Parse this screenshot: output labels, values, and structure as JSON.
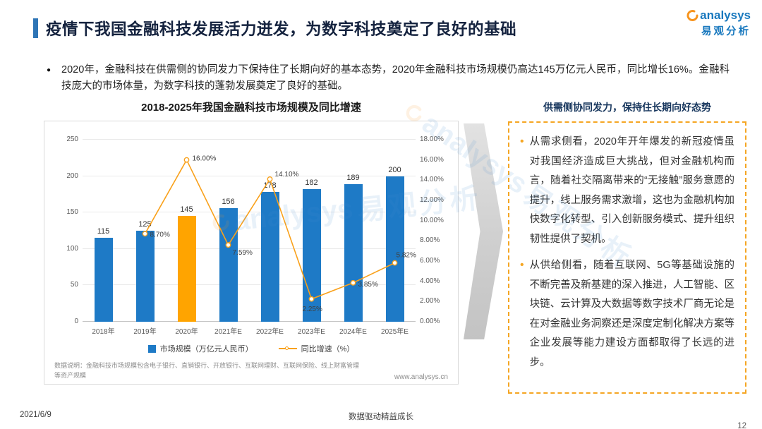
{
  "header": {
    "title": "疫情下我国金融科技发展活力迸发，为数字科技奠定了良好的基础",
    "logo": {
      "brand": "analysys",
      "brand_cn": "易观分析"
    }
  },
  "icons": {
    "intro_bullet": "●",
    "panel_bullet": "•"
  },
  "intro": {
    "text": "2020年，金融科技在供需侧的协同发力下保持住了长期向好的基本态势，2020年金融科技市场规模仍高达145万亿元人民币，同比增长16%。金融科技庞大的市场体量，为数字科技的蓬勃发展奠定了良好的基础。"
  },
  "chart_data": {
    "type": "bar+line",
    "title": "2018-2025年我国金融科技市场规模及同比增速",
    "categories": [
      "2018年",
      "2019年",
      "2020年",
      "2021年E",
      "2022年E",
      "2023年E",
      "2024年E",
      "2025年E"
    ],
    "series": [
      {
        "name": "市场规模（万亿元人民币）",
        "type": "bar",
        "axis": "left",
        "values": [
          115,
          125,
          145,
          156,
          178,
          182,
          189,
          200
        ],
        "color": "#1E7AC6",
        "highlight_index": 2,
        "highlight_color": "#FFA400"
      },
      {
        "name": "同比增速（%）",
        "type": "line",
        "axis": "right",
        "values": [
          null,
          8.7,
          16.0,
          7.59,
          14.1,
          2.25,
          3.85,
          5.82
        ],
        "labels": [
          null,
          "8.70%",
          "16.00%",
          "7.59%",
          "14.10%",
          "2.25%",
          "3.85%",
          "5.82%"
        ],
        "color": "#F9A11B"
      }
    ],
    "left_axis": {
      "ticks": [
        0,
        50,
        100,
        150,
        200,
        250
      ],
      "max": 250
    },
    "right_axis": {
      "ticks": [
        "0.00%",
        "2.00%",
        "4.00%",
        "6.00%",
        "8.00%",
        "10.00%",
        "12.00%",
        "14.00%",
        "16.00%",
        "18.00%"
      ],
      "max": 18
    },
    "legend": [
      "市场规模（万亿元人民币）",
      "同比增速（%）"
    ],
    "legend_position": "bottom",
    "grid": true,
    "note": "数据说明：金融科技市场规模包含电子银行、直销银行、开放银行、互联网理财、互联网保险、线上财富管理等资产规模",
    "source": "www.analysys.cn"
  },
  "panel": {
    "title": "供需侧协同发力，保持住长期向好态势",
    "bullets": [
      "从需求侧看，2020年开年爆发的新冠疫情虽对我国经济造成巨大挑战，但对金融机构而言，随着社交隔离带来的“无接触”服务意愿的提升，线上服务需求激增，这也为金融机构加快数字化转型、引入创新服务模式、提升组织韧性提供了契机。",
      "从供给侧看，随着互联网、5G等基础设施的不断完善及新基建的深入推进，人工智能、区块链、云计算及大数据等数字技术厂商无论是在对金融业务洞察还是深度定制化解决方案等企业发展等能力建设方面都取得了长远的进步。"
    ]
  },
  "watermark": {
    "brand": "analysys",
    "cn": "易观分析"
  },
  "footer": {
    "date": "2021/6/9",
    "center": "数据驱动精益成长",
    "page": "12"
  },
  "colors": {
    "accent_blue": "#2E75B6",
    "bar_blue": "#1E7AC6",
    "highlight_orange": "#FFA400",
    "line_orange": "#F9A11B",
    "panel_border_orange": "#F5A623",
    "brand_blue": "#1878BE",
    "brand_orange": "#F7941E"
  }
}
